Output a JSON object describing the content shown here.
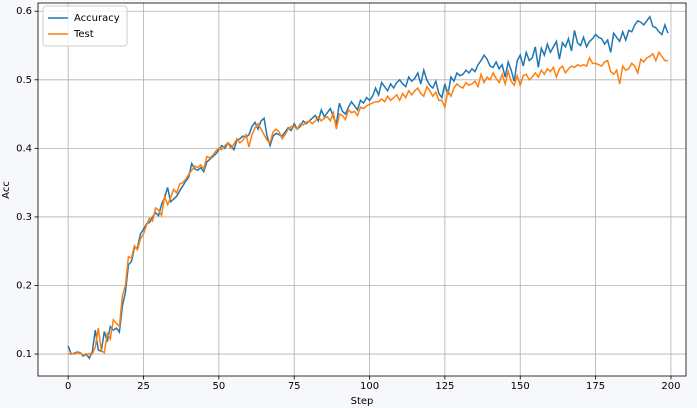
{
  "chart_data": {
    "type": "line",
    "xlabel": "Step",
    "ylabel": "Acc",
    "x": [
      0,
      1,
      2,
      3,
      4,
      5,
      6,
      7,
      8,
      9,
      10,
      11,
      12,
      13,
      14,
      15,
      16,
      17,
      18,
      19,
      20,
      21,
      22,
      23,
      24,
      25,
      26,
      27,
      28,
      29,
      30,
      31,
      32,
      33,
      34,
      35,
      36,
      37,
      38,
      39,
      40,
      41,
      42,
      43,
      44,
      45,
      46,
      47,
      48,
      49,
      50,
      51,
      52,
      53,
      54,
      55,
      56,
      57,
      58,
      59,
      60,
      61,
      62,
      63,
      64,
      65,
      66,
      67,
      68,
      69,
      70,
      71,
      72,
      73,
      74,
      75,
      76,
      77,
      78,
      79,
      80,
      81,
      82,
      83,
      84,
      85,
      86,
      87,
      88,
      89,
      90,
      91,
      92,
      93,
      94,
      95,
      96,
      97,
      98,
      99,
      100,
      101,
      102,
      103,
      104,
      105,
      106,
      107,
      108,
      109,
      110,
      111,
      112,
      113,
      114,
      115,
      116,
      117,
      118,
      119,
      120,
      121,
      122,
      123,
      124,
      125,
      126,
      127,
      128,
      129,
      130,
      131,
      132,
      133,
      134,
      135,
      136,
      137,
      138,
      139,
      140,
      141,
      142,
      143,
      144,
      145,
      146,
      147,
      148,
      149,
      150,
      151,
      152,
      153,
      154,
      155,
      156,
      157,
      158,
      159,
      160,
      161,
      162,
      163,
      164,
      165,
      166,
      167,
      168,
      169,
      170,
      171,
      172,
      173,
      174,
      175,
      176,
      177,
      178,
      179,
      180,
      181,
      182,
      183,
      184,
      185,
      186,
      187,
      188,
      189,
      190,
      191,
      192,
      193,
      194,
      195,
      196,
      197,
      198,
      199
    ],
    "series": [
      {
        "name": "Accuracy",
        "color": "#1f77b4",
        "values": [
          0.112,
          0.1,
          0.101,
          0.103,
          0.102,
          0.097,
          0.1,
          0.094,
          0.103,
          0.135,
          0.106,
          0.104,
          0.133,
          0.118,
          0.14,
          0.135,
          0.138,
          0.132,
          0.17,
          0.19,
          0.23,
          0.235,
          0.255,
          0.255,
          0.275,
          0.282,
          0.29,
          0.292,
          0.3,
          0.306,
          0.302,
          0.318,
          0.328,
          0.343,
          0.322,
          0.326,
          0.33,
          0.338,
          0.345,
          0.352,
          0.358,
          0.378,
          0.37,
          0.368,
          0.372,
          0.366,
          0.38,
          0.384,
          0.388,
          0.392,
          0.398,
          0.404,
          0.4,
          0.408,
          0.404,
          0.398,
          0.412,
          0.414,
          0.418,
          0.416,
          0.42,
          0.432,
          0.438,
          0.428,
          0.44,
          0.444,
          0.418,
          0.404,
          0.418,
          0.422,
          0.42,
          0.418,
          0.424,
          0.43,
          0.426,
          0.436,
          0.428,
          0.432,
          0.44,
          0.436,
          0.44,
          0.444,
          0.448,
          0.44,
          0.456,
          0.446,
          0.452,
          0.458,
          0.446,
          0.436,
          0.466,
          0.454,
          0.45,
          0.46,
          0.468,
          0.462,
          0.456,
          0.47,
          0.466,
          0.474,
          0.47,
          0.476,
          0.488,
          0.478,
          0.496,
          0.49,
          0.484,
          0.494,
          0.488,
          0.496,
          0.5,
          0.494,
          0.49,
          0.504,
          0.498,
          0.502,
          0.51,
          0.494,
          0.514,
          0.5,
          0.492,
          0.488,
          0.498,
          0.48,
          0.474,
          0.494,
          0.478,
          0.504,
          0.498,
          0.51,
          0.506,
          0.508,
          0.514,
          0.51,
          0.516,
          0.512,
          0.522,
          0.528,
          0.536,
          0.53,
          0.52,
          0.518,
          0.526,
          0.516,
          0.522,
          0.504,
          0.526,
          0.514,
          0.498,
          0.528,
          0.536,
          0.52,
          0.54,
          0.528,
          0.532,
          0.548,
          0.518,
          0.546,
          0.536,
          0.552,
          0.54,
          0.548,
          0.556,
          0.53,
          0.554,
          0.548,
          0.56,
          0.542,
          0.572,
          0.554,
          0.55,
          0.562,
          0.548,
          0.556,
          0.56,
          0.566,
          0.562,
          0.56,
          0.552,
          0.558,
          0.54,
          0.568,
          0.562,
          0.556,
          0.57,
          0.558,
          0.572,
          0.57,
          0.58,
          0.586,
          0.584,
          0.58,
          0.586,
          0.592,
          0.578,
          0.576,
          0.57,
          0.566,
          0.58,
          0.568
        ]
      },
      {
        "name": "Test",
        "color": "#ff7f0e",
        "values": [
          0.1,
          0.101,
          0.1,
          0.102,
          0.101,
          0.099,
          0.098,
          0.101,
          0.1,
          0.11,
          0.138,
          0.105,
          0.102,
          0.13,
          0.122,
          0.15,
          0.145,
          0.14,
          0.185,
          0.2,
          0.242,
          0.24,
          0.258,
          0.252,
          0.268,
          0.275,
          0.288,
          0.298,
          0.294,
          0.313,
          0.31,
          0.302,
          0.33,
          0.318,
          0.328,
          0.34,
          0.335,
          0.348,
          0.35,
          0.355,
          0.362,
          0.368,
          0.374,
          0.372,
          0.376,
          0.37,
          0.388,
          0.386,
          0.39,
          0.396,
          0.4,
          0.398,
          0.404,
          0.408,
          0.4,
          0.406,
          0.414,
          0.408,
          0.412,
          0.42,
          0.402,
          0.42,
          0.43,
          0.436,
          0.428,
          0.42,
          0.412,
          0.408,
          0.424,
          0.428,
          0.424,
          0.414,
          0.42,
          0.428,
          0.432,
          0.432,
          0.428,
          0.436,
          0.434,
          0.438,
          0.44,
          0.436,
          0.44,
          0.446,
          0.44,
          0.444,
          0.446,
          0.44,
          0.452,
          0.428,
          0.45,
          0.448,
          0.442,
          0.456,
          0.452,
          0.454,
          0.448,
          0.46,
          0.458,
          0.462,
          0.464,
          0.466,
          0.468,
          0.468,
          0.472,
          0.468,
          0.476,
          0.47,
          0.474,
          0.478,
          0.47,
          0.48,
          0.474,
          0.484,
          0.478,
          0.484,
          0.488,
          0.48,
          0.476,
          0.49,
          0.484,
          0.476,
          0.482,
          0.47,
          0.47,
          0.46,
          0.484,
          0.476,
          0.488,
          0.494,
          0.49,
          0.488,
          0.496,
          0.492,
          0.494,
          0.498,
          0.49,
          0.508,
          0.496,
          0.504,
          0.5,
          0.51,
          0.502,
          0.496,
          0.508,
          0.494,
          0.512,
          0.498,
          0.492,
          0.506,
          0.492,
          0.506,
          0.508,
          0.5,
          0.504,
          0.51,
          0.504,
          0.514,
          0.508,
          0.516,
          0.512,
          0.518,
          0.504,
          0.516,
          0.52,
          0.51,
          0.516,
          0.52,
          0.518,
          0.522,
          0.52,
          0.522,
          0.52,
          0.532,
          0.524,
          0.524,
          0.522,
          0.52,
          0.526,
          0.528,
          0.512,
          0.508,
          0.514,
          0.494,
          0.52,
          0.514,
          0.516,
          0.524,
          0.52,
          0.51,
          0.53,
          0.526,
          0.532,
          0.534,
          0.538,
          0.528,
          0.54,
          0.534,
          0.528,
          0.528
        ]
      }
    ],
    "xlim": [
      -10,
      205
    ],
    "xticks": [
      0,
      25,
      50,
      75,
      100,
      125,
      150,
      175,
      200
    ],
    "ylim": [
      0.068,
      0.612
    ],
    "yticks": [
      0.1,
      0.2,
      0.3,
      0.4,
      0.5,
      0.6
    ],
    "grid": true,
    "legend": "upper-left"
  }
}
